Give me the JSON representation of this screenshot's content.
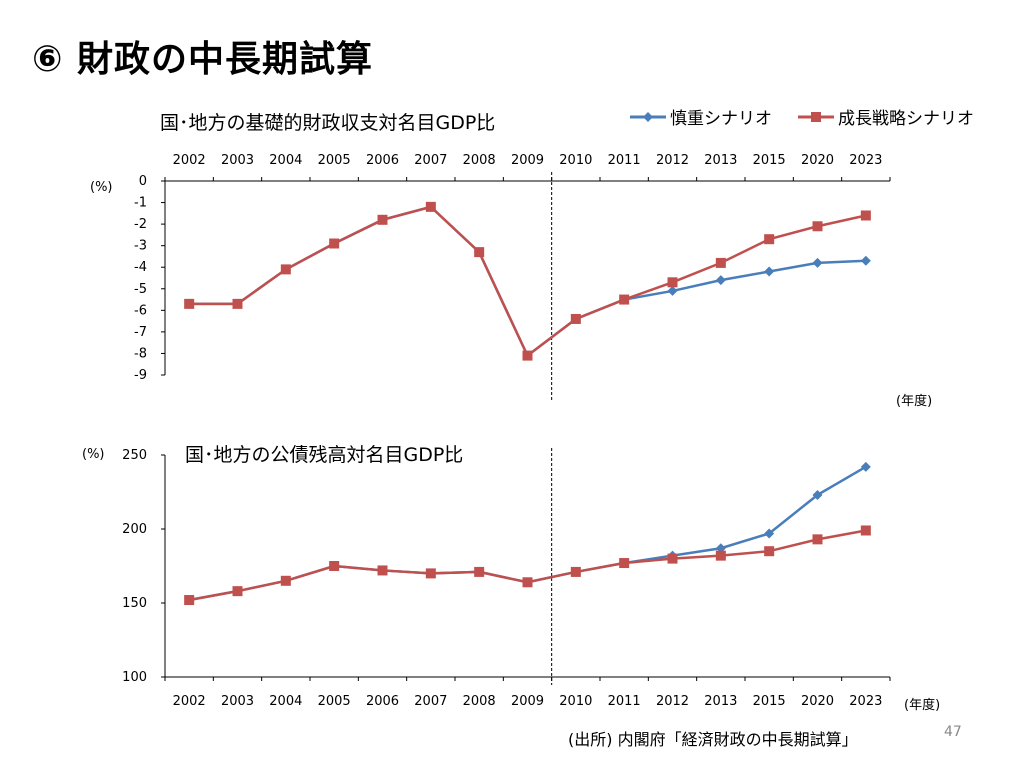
{
  "slide_title": "⑥ 財政の中長期試算",
  "legend": [
    {
      "name": "慎重シナリオ",
      "color": "#4a7ebb",
      "marker": "diamond"
    },
    {
      "name": "成長戦略シナリオ",
      "color": "#c0504d",
      "marker": "square"
    }
  ],
  "source": "(出所)  内閣府「経済財政の中長期試算」",
  "page_number": "47",
  "chart_data": [
    {
      "type": "line",
      "title": "国･地方の基礎的財政収支対名目GDP比",
      "ylabel": "(%)",
      "xlabel": "(年度)",
      "categories": [
        "2002",
        "2003",
        "2004",
        "2005",
        "2006",
        "2007",
        "2008",
        "2009",
        "2010",
        "2011",
        "2012",
        "2013",
        "2015",
        "2020",
        "2023"
      ],
      "ylim": [
        -9,
        0
      ],
      "yticks": [
        0,
        -1,
        -2,
        -3,
        -4,
        -5,
        -6,
        -7,
        -8,
        -9
      ],
      "divider_after": "2009",
      "series": [
        {
          "name": "慎重シナリオ",
          "values": [
            -5.7,
            -5.7,
            -4.1,
            -2.9,
            -1.8,
            -1.2,
            -3.3,
            -8.1,
            -6.4,
            -5.5,
            -5.1,
            -4.6,
            -4.2,
            -3.8,
            -3.7
          ]
        },
        {
          "name": "成長戦略シナリオ",
          "values": [
            -5.7,
            -5.7,
            -4.1,
            -2.9,
            -1.8,
            -1.2,
            -3.3,
            -8.1,
            -6.4,
            -5.5,
            -4.7,
            -3.8,
            -2.7,
            -2.1,
            -1.6
          ]
        }
      ]
    },
    {
      "type": "line",
      "title": "国･地方の公債残高対名目GDP比",
      "ylabel": "(%)",
      "xlabel": "(年度)",
      "categories": [
        "2002",
        "2003",
        "2004",
        "2005",
        "2006",
        "2007",
        "2008",
        "2009",
        "2010",
        "2011",
        "2012",
        "2013",
        "2015",
        "2020",
        "2023"
      ],
      "ylim": [
        100,
        250
      ],
      "yticks": [
        250,
        200,
        150,
        100
      ],
      "divider_after": "2009",
      "series": [
        {
          "name": "慎重シナリオ",
          "values": [
            152,
            158,
            165,
            175,
            172,
            170,
            171,
            164,
            171,
            177,
            182,
            187,
            197,
            223,
            242
          ]
        },
        {
          "name": "成長戦略シナリオ",
          "values": [
            152,
            158,
            165,
            175,
            172,
            170,
            171,
            164,
            171,
            177,
            180,
            182,
            185,
            193,
            199
          ]
        }
      ]
    }
  ]
}
